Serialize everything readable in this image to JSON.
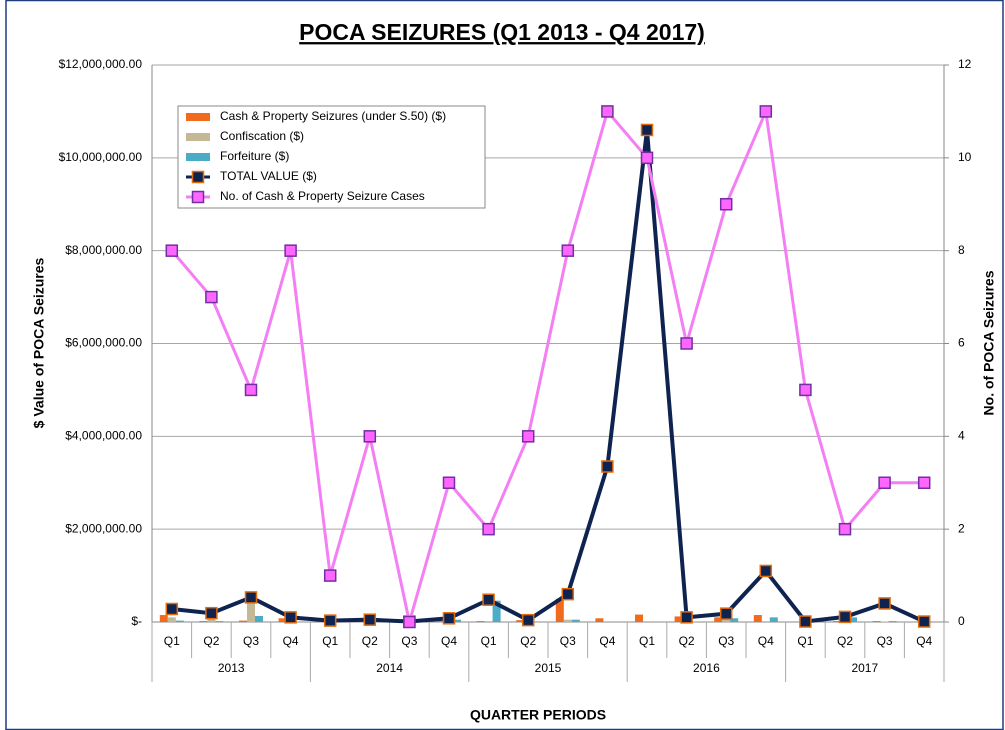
{
  "chart_data": {
    "type": "combo",
    "title": "POCA SEIZURES (Q1 2013 - Q4 2017)",
    "y_axis_label": "$ Value of POCA Seizures",
    "y2_axis_label": "No. of POCA Seizures",
    "x_axis_label": "QUARTER PERIODS",
    "categories": [
      "Q1",
      "Q2",
      "Q3",
      "Q4",
      "Q1",
      "Q2",
      "Q3",
      "Q4",
      "Q1",
      "Q2",
      "Q3",
      "Q4",
      "Q1",
      "Q2",
      "Q3",
      "Q4",
      "Q1",
      "Q2",
      "Q3",
      "Q4"
    ],
    "year_groups": [
      "2013",
      "2014",
      "2015",
      "2016",
      "2017"
    ],
    "ylim": [
      0,
      12000000
    ],
    "yticks": [
      {
        "value": 0,
        "label": "$-"
      },
      {
        "value": 2000000,
        "label": "$2,000,000.00"
      },
      {
        "value": 4000000,
        "label": "$4,000,000.00"
      },
      {
        "value": 6000000,
        "label": "$6,000,000.00"
      },
      {
        "value": 8000000,
        "label": "$8,000,000.00"
      },
      {
        "value": 10000000,
        "label": "$10,000,000.00"
      },
      {
        "value": 12000000,
        "label": "$12,000,000.00"
      }
    ],
    "y2lim": [
      0,
      12
    ],
    "y2ticks": [
      0,
      2,
      4,
      6,
      8,
      10,
      12
    ],
    "grid": true,
    "series": [
      {
        "name": "Cash & Property Seizures (under S.50) ($)",
        "kind": "bar",
        "color": "#f26b1d",
        "values": [
          150000,
          20000,
          30000,
          80000,
          10000,
          30000,
          0,
          20000,
          20000,
          40000,
          500000,
          80000,
          160000,
          120000,
          100000,
          150000,
          10000,
          20000,
          20000,
          10000
        ]
      },
      {
        "name": "Confiscation ($)",
        "kind": "bar",
        "color": "#c4b996",
        "values": [
          100000,
          150000,
          400000,
          30000,
          10000,
          10000,
          5000,
          10000,
          0,
          0,
          50000,
          0,
          0,
          0,
          50000,
          0,
          0,
          0,
          10000,
          0
        ]
      },
      {
        "name": "Forfeiture ($)",
        "kind": "bar",
        "color": "#4bacc6",
        "values": [
          30000,
          20000,
          130000,
          10000,
          10000,
          10000,
          5000,
          50000,
          460000,
          0,
          50000,
          0,
          10000,
          10000,
          80000,
          100000,
          0,
          100000,
          20000,
          0
        ]
      },
      {
        "name": "TOTAL VALUE ($)",
        "kind": "line",
        "color": "#0f2350",
        "marker_edge": "#e36c0a",
        "values": [
          280000,
          190000,
          530000,
          100000,
          30000,
          50000,
          10000,
          80000,
          480000,
          40000,
          600000,
          3350000,
          10600000,
          100000,
          180000,
          1100000,
          10000,
          110000,
          400000,
          10000
        ]
      },
      {
        "name": "No. of Cash & Property Seizure Cases",
        "kind": "line",
        "axis": "y2",
        "color": "#f47ef4",
        "marker_edge": "#7030a0",
        "values": [
          8,
          7,
          5,
          8,
          1,
          4,
          0,
          3,
          2,
          4,
          8,
          11,
          10,
          6,
          9,
          11,
          5,
          2,
          3,
          3
        ]
      }
    ]
  }
}
